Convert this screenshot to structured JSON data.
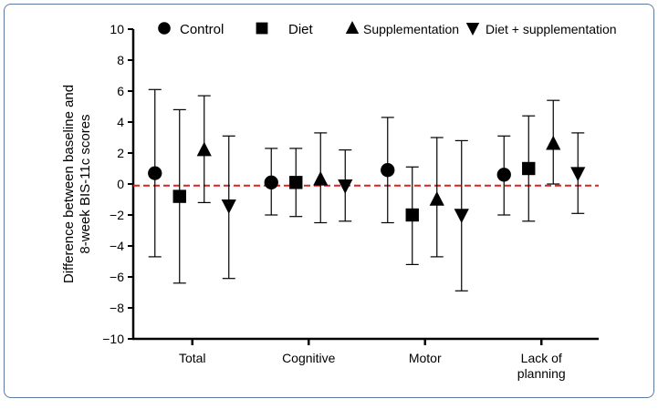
{
  "chart_data": {
    "type": "scatter",
    "title": "",
    "xlabel": "",
    "ylabel": [
      "Difference between baseline and",
      "8-week BIS-11c scores"
    ],
    "ylim": [
      -10,
      10
    ],
    "yticks": [
      10,
      8,
      6,
      4,
      2,
      0,
      -2,
      -4,
      -6,
      -8,
      -10
    ],
    "ytick_labels": [
      "10",
      "8",
      "6",
      "4",
      "2",
      "0",
      "−2",
      "−4",
      "−6",
      "−8",
      "−10"
    ],
    "categories": [
      [
        "Total"
      ],
      [
        "Cognitive"
      ],
      [
        "Motor"
      ],
      [
        "Lack of",
        "planning"
      ]
    ],
    "reference_line": {
      "y": -0.1,
      "color": "#e02020",
      "style": "dashed"
    },
    "legend_position": "top",
    "series": [
      {
        "name": "Control",
        "marker": "circle",
        "values": [
          0.7,
          0.1,
          0.9,
          0.6
        ],
        "lower": [
          -4.7,
          -2.0,
          -2.5,
          -2.0
        ],
        "upper": [
          6.1,
          2.3,
          4.3,
          3.1
        ]
      },
      {
        "name": "Diet",
        "marker": "square",
        "values": [
          -0.8,
          0.1,
          -2.0,
          1.0
        ],
        "lower": [
          -6.4,
          -2.1,
          -5.2,
          -2.4
        ],
        "upper": [
          4.8,
          2.3,
          1.1,
          4.4
        ]
      },
      {
        "name": "Supplementation",
        "marker": "triangle-up",
        "values": [
          2.2,
          0.3,
          -1.0,
          2.6
        ],
        "lower": [
          -1.2,
          -2.5,
          -4.7,
          0.0
        ],
        "upper": [
          5.7,
          3.3,
          3.0,
          5.4
        ]
      },
      {
        "name": "Diet + supplementation",
        "marker": "triangle-down",
        "values": [
          -1.4,
          -0.1,
          -2.0,
          0.7
        ],
        "lower": [
          -6.1,
          -2.4,
          -6.9,
          -1.9
        ],
        "upper": [
          3.1,
          2.2,
          2.8,
          3.3
        ]
      }
    ]
  }
}
